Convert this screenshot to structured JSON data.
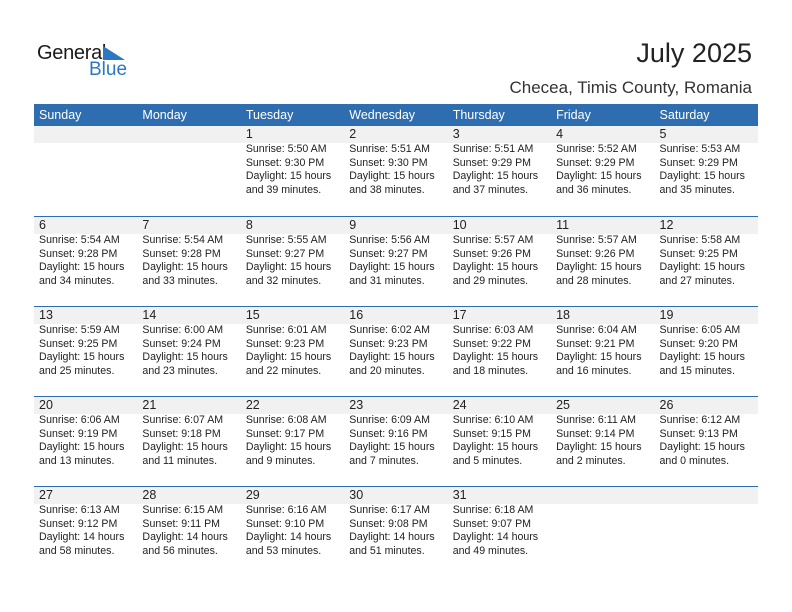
{
  "logo": {
    "line1": "General",
    "line2": "Blue",
    "accent": "#2a78c2"
  },
  "header": {
    "title": "July 2025",
    "subtitle": "Checea, Timis County, Romania"
  },
  "colors": {
    "header_bg": "#2e6db0",
    "date_band": "#f1f1f1"
  },
  "weekdays": [
    "Sunday",
    "Monday",
    "Tuesday",
    "Wednesday",
    "Thursday",
    "Friday",
    "Saturday"
  ],
  "weeks": [
    [
      null,
      null,
      {
        "day": "1",
        "sunrise": "Sunrise: 5:50 AM",
        "sunset": "Sunset: 9:30 PM",
        "daylight": "Daylight: 15 hours",
        "minutes": "and 39 minutes."
      },
      {
        "day": "2",
        "sunrise": "Sunrise: 5:51 AM",
        "sunset": "Sunset: 9:30 PM",
        "daylight": "Daylight: 15 hours",
        "minutes": "and 38 minutes."
      },
      {
        "day": "3",
        "sunrise": "Sunrise: 5:51 AM",
        "sunset": "Sunset: 9:29 PM",
        "daylight": "Daylight: 15 hours",
        "minutes": "and 37 minutes."
      },
      {
        "day": "4",
        "sunrise": "Sunrise: 5:52 AM",
        "sunset": "Sunset: 9:29 PM",
        "daylight": "Daylight: 15 hours",
        "minutes": "and 36 minutes."
      },
      {
        "day": "5",
        "sunrise": "Sunrise: 5:53 AM",
        "sunset": "Sunset: 9:29 PM",
        "daylight": "Daylight: 15 hours",
        "minutes": "and 35 minutes."
      }
    ],
    [
      {
        "day": "6",
        "sunrise": "Sunrise: 5:54 AM",
        "sunset": "Sunset: 9:28 PM",
        "daylight": "Daylight: 15 hours",
        "minutes": "and 34 minutes."
      },
      {
        "day": "7",
        "sunrise": "Sunrise: 5:54 AM",
        "sunset": "Sunset: 9:28 PM",
        "daylight": "Daylight: 15 hours",
        "minutes": "and 33 minutes."
      },
      {
        "day": "8",
        "sunrise": "Sunrise: 5:55 AM",
        "sunset": "Sunset: 9:27 PM",
        "daylight": "Daylight: 15 hours",
        "minutes": "and 32 minutes."
      },
      {
        "day": "9",
        "sunrise": "Sunrise: 5:56 AM",
        "sunset": "Sunset: 9:27 PM",
        "daylight": "Daylight: 15 hours",
        "minutes": "and 31 minutes."
      },
      {
        "day": "10",
        "sunrise": "Sunrise: 5:57 AM",
        "sunset": "Sunset: 9:26 PM",
        "daylight": "Daylight: 15 hours",
        "minutes": "and 29 minutes."
      },
      {
        "day": "11",
        "sunrise": "Sunrise: 5:57 AM",
        "sunset": "Sunset: 9:26 PM",
        "daylight": "Daylight: 15 hours",
        "minutes": "and 28 minutes."
      },
      {
        "day": "12",
        "sunrise": "Sunrise: 5:58 AM",
        "sunset": "Sunset: 9:25 PM",
        "daylight": "Daylight: 15 hours",
        "minutes": "and 27 minutes."
      }
    ],
    [
      {
        "day": "13",
        "sunrise": "Sunrise: 5:59 AM",
        "sunset": "Sunset: 9:25 PM",
        "daylight": "Daylight: 15 hours",
        "minutes": "and 25 minutes."
      },
      {
        "day": "14",
        "sunrise": "Sunrise: 6:00 AM",
        "sunset": "Sunset: 9:24 PM",
        "daylight": "Daylight: 15 hours",
        "minutes": "and 23 minutes."
      },
      {
        "day": "15",
        "sunrise": "Sunrise: 6:01 AM",
        "sunset": "Sunset: 9:23 PM",
        "daylight": "Daylight: 15 hours",
        "minutes": "and 22 minutes."
      },
      {
        "day": "16",
        "sunrise": "Sunrise: 6:02 AM",
        "sunset": "Sunset: 9:23 PM",
        "daylight": "Daylight: 15 hours",
        "minutes": "and 20 minutes."
      },
      {
        "day": "17",
        "sunrise": "Sunrise: 6:03 AM",
        "sunset": "Sunset: 9:22 PM",
        "daylight": "Daylight: 15 hours",
        "minutes": "and 18 minutes."
      },
      {
        "day": "18",
        "sunrise": "Sunrise: 6:04 AM",
        "sunset": "Sunset: 9:21 PM",
        "daylight": "Daylight: 15 hours",
        "minutes": "and 16 minutes."
      },
      {
        "day": "19",
        "sunrise": "Sunrise: 6:05 AM",
        "sunset": "Sunset: 9:20 PM",
        "daylight": "Daylight: 15 hours",
        "minutes": "and 15 minutes."
      }
    ],
    [
      {
        "day": "20",
        "sunrise": "Sunrise: 6:06 AM",
        "sunset": "Sunset: 9:19 PM",
        "daylight": "Daylight: 15 hours",
        "minutes": "and 13 minutes."
      },
      {
        "day": "21",
        "sunrise": "Sunrise: 6:07 AM",
        "sunset": "Sunset: 9:18 PM",
        "daylight": "Daylight: 15 hours",
        "minutes": "and 11 minutes."
      },
      {
        "day": "22",
        "sunrise": "Sunrise: 6:08 AM",
        "sunset": "Sunset: 9:17 PM",
        "daylight": "Daylight: 15 hours",
        "minutes": "and 9 minutes."
      },
      {
        "day": "23",
        "sunrise": "Sunrise: 6:09 AM",
        "sunset": "Sunset: 9:16 PM",
        "daylight": "Daylight: 15 hours",
        "minutes": "and 7 minutes."
      },
      {
        "day": "24",
        "sunrise": "Sunrise: 6:10 AM",
        "sunset": "Sunset: 9:15 PM",
        "daylight": "Daylight: 15 hours",
        "minutes": "and 5 minutes."
      },
      {
        "day": "25",
        "sunrise": "Sunrise: 6:11 AM",
        "sunset": "Sunset: 9:14 PM",
        "daylight": "Daylight: 15 hours",
        "minutes": "and 2 minutes."
      },
      {
        "day": "26",
        "sunrise": "Sunrise: 6:12 AM",
        "sunset": "Sunset: 9:13 PM",
        "daylight": "Daylight: 15 hours",
        "minutes": "and 0 minutes."
      }
    ],
    [
      {
        "day": "27",
        "sunrise": "Sunrise: 6:13 AM",
        "sunset": "Sunset: 9:12 PM",
        "daylight": "Daylight: 14 hours",
        "minutes": "and 58 minutes."
      },
      {
        "day": "28",
        "sunrise": "Sunrise: 6:15 AM",
        "sunset": "Sunset: 9:11 PM",
        "daylight": "Daylight: 14 hours",
        "minutes": "and 56 minutes."
      },
      {
        "day": "29",
        "sunrise": "Sunrise: 6:16 AM",
        "sunset": "Sunset: 9:10 PM",
        "daylight": "Daylight: 14 hours",
        "minutes": "and 53 minutes."
      },
      {
        "day": "30",
        "sunrise": "Sunrise: 6:17 AM",
        "sunset": "Sunset: 9:08 PM",
        "daylight": "Daylight: 14 hours",
        "minutes": "and 51 minutes."
      },
      {
        "day": "31",
        "sunrise": "Sunrise: 6:18 AM",
        "sunset": "Sunset: 9:07 PM",
        "daylight": "Daylight: 14 hours",
        "minutes": "and 49 minutes."
      },
      null,
      null
    ]
  ]
}
